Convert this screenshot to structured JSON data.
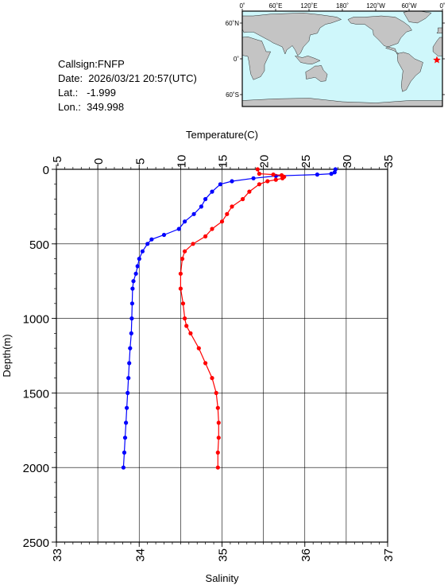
{
  "info": {
    "callsign": "Callsign:FNFP",
    "date": "Date:  2026/03/21 20:57(UTC)",
    "lat": "Lat.:   -1.999",
    "lon": "Lon.:  349.998"
  },
  "map": {
    "lon_labels": [
      "0˚",
      "60˚E",
      "120˚E",
      "180˚",
      "120˚W",
      "60˚W",
      "0˚"
    ],
    "lat_labels": [
      "60˚N",
      "0˚",
      "60˚S"
    ],
    "ocean_color": "#cff7fb",
    "land_color": "#c4c4c4",
    "marker": {
      "lon": 349.998,
      "lat": -1.999,
      "color": "#ff0000"
    }
  },
  "chart_data": {
    "type": "line",
    "ylabel": "Depth(m)",
    "ylim": [
      2500,
      0
    ],
    "yticks": [
      0,
      500,
      1000,
      1500,
      2000,
      2500
    ],
    "top_axis": {
      "label": "Temperature(C)",
      "lim": [
        -5,
        35
      ],
      "ticks": [
        -5,
        0,
        5,
        10,
        15,
        20,
        25,
        30,
        35
      ]
    },
    "bottom_axis": {
      "label": "Salinity",
      "lim": [
        33,
        37
      ],
      "ticks": [
        33,
        34,
        35,
        36,
        37
      ]
    },
    "grid": true,
    "series": [
      {
        "axis": "temperature",
        "color": "#0000ff",
        "points": [
          [
            28.7,
            0
          ],
          [
            28.6,
            20
          ],
          [
            28.2,
            30
          ],
          [
            26.5,
            35
          ],
          [
            21.5,
            45
          ],
          [
            18.8,
            60
          ],
          [
            16.2,
            80
          ],
          [
            14.8,
            100
          ],
          [
            13.8,
            150
          ],
          [
            13.0,
            200
          ],
          [
            12.5,
            250
          ],
          [
            11.6,
            300
          ],
          [
            10.5,
            350
          ],
          [
            9.8,
            400
          ],
          [
            8.0,
            440
          ],
          [
            6.5,
            470
          ],
          [
            6.0,
            500
          ],
          [
            5.4,
            550
          ],
          [
            5.0,
            600
          ],
          [
            4.8,
            650
          ],
          [
            4.6,
            700
          ],
          [
            4.3,
            750
          ],
          [
            4.2,
            800
          ],
          [
            4.15,
            900
          ],
          [
            4.1,
            1000
          ],
          [
            4.05,
            1100
          ],
          [
            3.9,
            1200
          ],
          [
            3.8,
            1300
          ],
          [
            3.7,
            1400
          ],
          [
            3.6,
            1500
          ],
          [
            3.5,
            1600
          ],
          [
            3.4,
            1700
          ],
          [
            3.3,
            1800
          ],
          [
            3.2,
            1900
          ],
          [
            3.1,
            2000
          ]
        ]
      },
      {
        "axis": "salinity",
        "color": "#ff0000",
        "points": [
          [
            35.43,
            0
          ],
          [
            35.45,
            30
          ],
          [
            35.62,
            35
          ],
          [
            35.72,
            40
          ],
          [
            35.75,
            50
          ],
          [
            35.73,
            60
          ],
          [
            35.65,
            70
          ],
          [
            35.55,
            80
          ],
          [
            35.45,
            100
          ],
          [
            35.33,
            150
          ],
          [
            35.25,
            200
          ],
          [
            35.12,
            250
          ],
          [
            35.06,
            300
          ],
          [
            35.0,
            350
          ],
          [
            34.88,
            400
          ],
          [
            34.8,
            450
          ],
          [
            34.65,
            500
          ],
          [
            34.55,
            550
          ],
          [
            34.52,
            600
          ],
          [
            34.5,
            700
          ],
          [
            34.5,
            800
          ],
          [
            34.53,
            900
          ],
          [
            34.55,
            1000
          ],
          [
            34.57,
            1050
          ],
          [
            34.62,
            1100
          ],
          [
            34.72,
            1200
          ],
          [
            34.8,
            1300
          ],
          [
            34.88,
            1400
          ],
          [
            34.93,
            1500
          ],
          [
            34.95,
            1600
          ],
          [
            34.96,
            1700
          ],
          [
            34.96,
            1800
          ],
          [
            34.95,
            1900
          ],
          [
            34.95,
            2000
          ]
        ]
      }
    ]
  }
}
